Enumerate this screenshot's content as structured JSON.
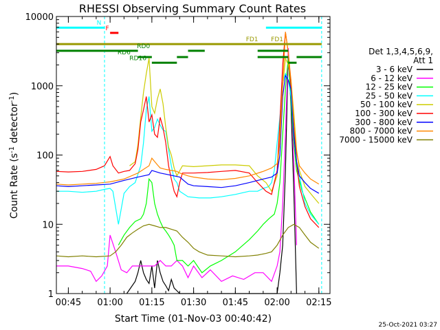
{
  "chart_data": {
    "type": "line",
    "title": "RHESSI Observing Summary Count Rates",
    "xlabel": "Start Time (01-Nov-03 00:40:42)",
    "ylabel": "Count Rate (s⁻¹ detector⁻¹)",
    "ylabel_main": "Count Rate (s",
    "ylabel_sup1": "-1",
    "ylabel_mid": " detector",
    "ylabel_sup2": "-1",
    "ylabel_end": ")",
    "x_range": [
      "00:40:42",
      "02:19:00"
    ],
    "y_range": [
      1,
      10000
    ],
    "y_scale": "log",
    "x_ticks": [
      "00:45",
      "01:00",
      "01:15",
      "01:30",
      "01:45",
      "02:00",
      "02:15"
    ],
    "y_ticks": [
      "1",
      "10",
      "100",
      "1000",
      "10000"
    ],
    "legend_title": [
      "Det 1,3,4,5,6,9,",
      "Att 1"
    ],
    "legend_position": "right",
    "timestamp": "25-Oct-2021 03:27",
    "grid": false,
    "flags": [
      {
        "name": "N",
        "color": "#00ffff",
        "label_at": "00:56",
        "level": 6900,
        "intervals": [
          [
            "00:40:42",
            "00:58"
          ],
          [
            "01:56",
            "02:16"
          ]
        ]
      },
      {
        "name": "F",
        "color": "#ff0000",
        "label_at": "00:59",
        "level": 5800,
        "intervals": [
          [
            "01:00",
            "01:03"
          ]
        ]
      },
      {
        "name": "FD1",
        "color": "#999900",
        "label_at": "01:51",
        "level": 4000,
        "intervals": [
          [
            "00:40:42",
            "02:16"
          ]
        ]
      },
      {
        "name": "FD1",
        "color": "#999900",
        "label_at": "02:00",
        "level": 4000,
        "intervals": []
      },
      {
        "name": "RD0",
        "color": "#008000",
        "label_at": "01:12",
        "level": 3200,
        "intervals": [
          [
            "00:40:42",
            "01:10"
          ],
          [
            "01:28",
            "01:34"
          ],
          [
            "01:53",
            "02:04"
          ]
        ]
      },
      {
        "name": "RD6",
        "color": "#008000",
        "label_at": "01:05",
        "level": 2600,
        "intervals": [
          [
            "01:10",
            "01:15"
          ],
          [
            "01:24",
            "01:28"
          ],
          [
            "01:53",
            "02:04"
          ],
          [
            "02:07",
            "02:16"
          ]
        ]
      },
      {
        "name": "RD16",
        "color": "#008000",
        "label_at": "01:10",
        "level": 2150,
        "intervals": [
          [
            "01:15",
            "01:24"
          ],
          [
            "02:04",
            "02:07"
          ]
        ]
      }
    ],
    "saa_markers": [
      "00:58",
      "02:16"
    ],
    "series": [
      {
        "name": "3 - 6 keV",
        "color": "#000000",
        "x": [
          "01:06",
          "01:09",
          "01:10",
          "01:11",
          "01:12",
          "01:13",
          "01:14",
          "01:15",
          "01:16",
          "01:17",
          "01:18",
          "01:19",
          "01:20",
          "01:21",
          "01:22",
          "01:23",
          "01:25",
          "02:00",
          "02:01",
          "02:02",
          "02:03",
          "02:04",
          "02:05",
          "02:06",
          "02:07"
        ],
        "y": [
          1,
          1.5,
          2,
          3,
          2,
          1.6,
          1.4,
          2.5,
          1.2,
          3,
          2,
          1.5,
          1.3,
          1.1,
          1.6,
          1.2,
          1,
          1,
          2,
          5,
          60,
          3000,
          500,
          30,
          1
        ]
      },
      {
        "name": "6 - 12 keV",
        "color": "#ff00ff",
        "x": [
          "00:40:42",
          "00:45",
          "00:50",
          "00:53",
          "00:55",
          "00:57",
          "00:59",
          "01:00",
          "01:02",
          "01:04",
          "01:06",
          "01:08",
          "01:10",
          "01:12",
          "01:14",
          "01:16",
          "01:18",
          "01:20",
          "01:22",
          "01:24",
          "01:26",
          "01:28",
          "01:30",
          "01:33",
          "01:36",
          "01:40",
          "01:44",
          "01:48",
          "01:52",
          "01:55",
          "01:58",
          "02:00",
          "02:01",
          "02:02",
          "02:03",
          "02:04",
          "02:05",
          "02:06",
          "02:07"
        ],
        "y": [
          2.5,
          2.5,
          2.3,
          2.1,
          1.5,
          1.8,
          2.5,
          7,
          4,
          2.2,
          2,
          2.5,
          2.5,
          2.5,
          2.5,
          2.5,
          3,
          2.5,
          2.5,
          3,
          2.5,
          1.7,
          2.5,
          1.7,
          2.2,
          1.5,
          1.8,
          1.6,
          2,
          2,
          1.5,
          2.5,
          4,
          20,
          200,
          3500,
          800,
          80,
          5
        ]
      },
      {
        "name": "12 - 25 keV",
        "color": "#00ff00",
        "x": [
          "01:03",
          "01:05",
          "01:07",
          "01:09",
          "01:11",
          "01:12",
          "01:13",
          "01:14",
          "01:15",
          "01:16",
          "01:17",
          "01:18",
          "01:19",
          "01:20",
          "01:21",
          "01:22",
          "01:23",
          "01:24",
          "01:26",
          "01:28",
          "01:30",
          "01:33",
          "01:36",
          "01:40",
          "01:45",
          "01:50",
          "01:53",
          "01:55",
          "01:57",
          "01:59",
          "02:00",
          "02:01",
          "02:02",
          "02:03",
          "02:04",
          "02:05",
          "02:06",
          "02:07",
          "02:09",
          "02:12",
          "02:15"
        ],
        "y": [
          5,
          7,
          9,
          11,
          12,
          14,
          20,
          45,
          40,
          20,
          14,
          11,
          9,
          8,
          7,
          6,
          5,
          3,
          3,
          2.5,
          3,
          2,
          2.5,
          3,
          4,
          6,
          8,
          10,
          12,
          14,
          20,
          40,
          200,
          900,
          2500,
          600,
          150,
          60,
          30,
          15,
          10
        ]
      },
      {
        "name": "25 - 50 keV",
        "color": "#00ffff",
        "x": [
          "00:40:42",
          "00:45",
          "00:50",
          "00:55",
          "00:58",
          "01:00",
          "01:01",
          "01:03",
          "01:05",
          "01:07",
          "01:09",
          "01:11",
          "01:12",
          "01:13",
          "01:14",
          "01:15",
          "01:16",
          "01:17",
          "01:18",
          "01:19",
          "01:20",
          "01:21",
          "01:22",
          "01:23",
          "01:24",
          "01:25",
          "01:28",
          "01:32",
          "01:36",
          "01:40",
          "01:45",
          "01:50",
          "01:53",
          "01:55",
          "01:57",
          "01:58",
          "01:59",
          "02:00",
          "02:01",
          "02:02",
          "02:03",
          "02:04",
          "02:05",
          "02:06",
          "02:07",
          "02:08",
          "02:10",
          "02:12",
          "02:15"
        ],
        "y": [
          30,
          30,
          29,
          30,
          32,
          33,
          30,
          10,
          28,
          35,
          40,
          70,
          150,
          450,
          700,
          220,
          250,
          330,
          270,
          230,
          220,
          120,
          70,
          45,
          40,
          30,
          25,
          24,
          24,
          25,
          27,
          30,
          30,
          33,
          35,
          40,
          60,
          150,
          350,
          1100,
          1500,
          1200,
          700,
          200,
          80,
          50,
          20,
          14,
          10
        ]
      },
      {
        "name": "50 - 100 keV",
        "color": "#cccc00",
        "x": [
          "01:07",
          "01:09",
          "01:10",
          "01:11",
          "01:12",
          "01:13",
          "01:14",
          "01:15",
          "01:16",
          "01:17",
          "01:18",
          "01:19",
          "01:20",
          "01:21",
          "01:22",
          "01:23",
          "01:24",
          "01:26",
          "01:30",
          "01:35",
          "01:40",
          "01:45",
          "01:50",
          "01:53",
          "01:56",
          "01:58",
          "02:00",
          "02:01",
          "02:02",
          "02:03",
          "02:04",
          "02:05",
          "02:06",
          "02:07",
          "02:08",
          "02:10",
          "02:13",
          "02:15"
        ],
        "y": [
          70,
          80,
          140,
          350,
          800,
          1500,
          2500,
          500,
          400,
          650,
          900,
          550,
          250,
          130,
          100,
          65,
          50,
          70,
          68,
          70,
          72,
          72,
          70,
          50,
          40,
          30,
          50,
          200,
          1000,
          2500,
          2000,
          1200,
          400,
          120,
          60,
          35,
          25,
          20
        ]
      },
      {
        "name": "100 - 300 keV",
        "color": "#ff0000",
        "x": [
          "00:40:42",
          "00:45",
          "00:50",
          "00:55",
          "00:58",
          "01:00",
          "01:01",
          "01:03",
          "01:05",
          "01:07",
          "01:09",
          "01:10",
          "01:11",
          "01:12",
          "01:13",
          "01:14",
          "01:15",
          "01:16",
          "01:17",
          "01:18",
          "01:19",
          "01:20",
          "01:21",
          "01:22",
          "01:23",
          "01:24",
          "01:25",
          "01:26",
          "01:30",
          "01:35",
          "01:40",
          "01:45",
          "01:50",
          "01:53",
          "01:56",
          "01:58",
          "02:00",
          "02:01",
          "02:02",
          "02:03",
          "02:04",
          "02:05",
          "02:06",
          "02:07",
          "02:08",
          "02:10",
          "02:12",
          "02:15"
        ],
        "y": [
          58,
          57,
          58,
          62,
          70,
          95,
          70,
          55,
          58,
          60,
          75,
          120,
          300,
          450,
          700,
          300,
          380,
          200,
          180,
          350,
          250,
          150,
          70,
          45,
          30,
          25,
          40,
          55,
          55,
          56,
          58,
          60,
          55,
          40,
          30,
          27,
          60,
          300,
          2000,
          6000,
          3000,
          1000,
          300,
          80,
          35,
          18,
          12,
          9
        ]
      },
      {
        "name": "300 - 800 keV",
        "color": "#0000ff",
        "x": [
          "00:40:42",
          "00:45",
          "00:50",
          "00:55",
          "01:00",
          "01:05",
          "01:10",
          "01:14",
          "01:15",
          "01:18",
          "01:20",
          "01:25",
          "01:28",
          "01:30",
          "01:35",
          "01:40",
          "01:45",
          "01:50",
          "01:55",
          "01:58",
          "02:00",
          "02:01",
          "02:02",
          "02:03",
          "02:04",
          "02:05",
          "02:06",
          "02:07",
          "02:08",
          "02:10",
          "02:12",
          "02:15"
        ],
        "y": [
          36,
          35,
          36,
          37,
          38,
          43,
          48,
          52,
          60,
          55,
          53,
          48,
          38,
          36,
          35,
          34,
          36,
          40,
          45,
          48,
          55,
          100,
          700,
          1400,
          1200,
          900,
          200,
          80,
          50,
          40,
          33,
          28
        ]
      },
      {
        "name": "800 - 7000 keV",
        "color": "#ff8800",
        "x": [
          "00:40:42",
          "00:45",
          "00:50",
          "00:55",
          "01:00",
          "01:05",
          "01:10",
          "01:12",
          "01:14",
          "01:15",
          "01:17",
          "01:18",
          "01:20",
          "01:22",
          "01:24",
          "01:25",
          "01:28",
          "01:30",
          "01:35",
          "01:40",
          "01:45",
          "01:50",
          "01:55",
          "01:58",
          "02:00",
          "02:01",
          "02:02",
          "02:03",
          "02:04",
          "02:05",
          "02:06",
          "02:07",
          "02:08",
          "02:10",
          "02:12",
          "02:15"
        ],
        "y": [
          38,
          37,
          38,
          39,
          41,
          45,
          55,
          62,
          70,
          90,
          72,
          65,
          62,
          60,
          58,
          55,
          50,
          48,
          45,
          44,
          46,
          50,
          58,
          65,
          75,
          150,
          1000,
          6000,
          3000,
          1200,
          300,
          110,
          70,
          55,
          45,
          38
        ]
      },
      {
        "name": "7000 - 15000 keV",
        "color": "#808000",
        "x": [
          "00:40:42",
          "00:45",
          "00:50",
          "00:55",
          "01:00",
          "01:02",
          "01:04",
          "01:06",
          "01:08",
          "01:10",
          "01:12",
          "01:14",
          "01:16",
          "01:18",
          "01:20",
          "01:22",
          "01:24",
          "01:26",
          "01:28",
          "01:30",
          "01:32",
          "01:35",
          "01:40",
          "01:45",
          "01:50",
          "01:53",
          "01:56",
          "01:58",
          "02:00",
          "02:02",
          "02:04",
          "02:06",
          "02:08",
          "02:10",
          "02:12",
          "02:15"
        ],
        "y": [
          3.5,
          3.4,
          3.5,
          3.4,
          3.5,
          4,
          5,
          6.5,
          7.5,
          8.5,
          9.5,
          10,
          9.5,
          9,
          9,
          8.5,
          8,
          6.5,
          5.5,
          4.5,
          4,
          3.6,
          3.5,
          3.4,
          3.5,
          3.6,
          3.8,
          4,
          5,
          7,
          9,
          10,
          9,
          7,
          5.5,
          4.5
        ]
      }
    ]
  }
}
